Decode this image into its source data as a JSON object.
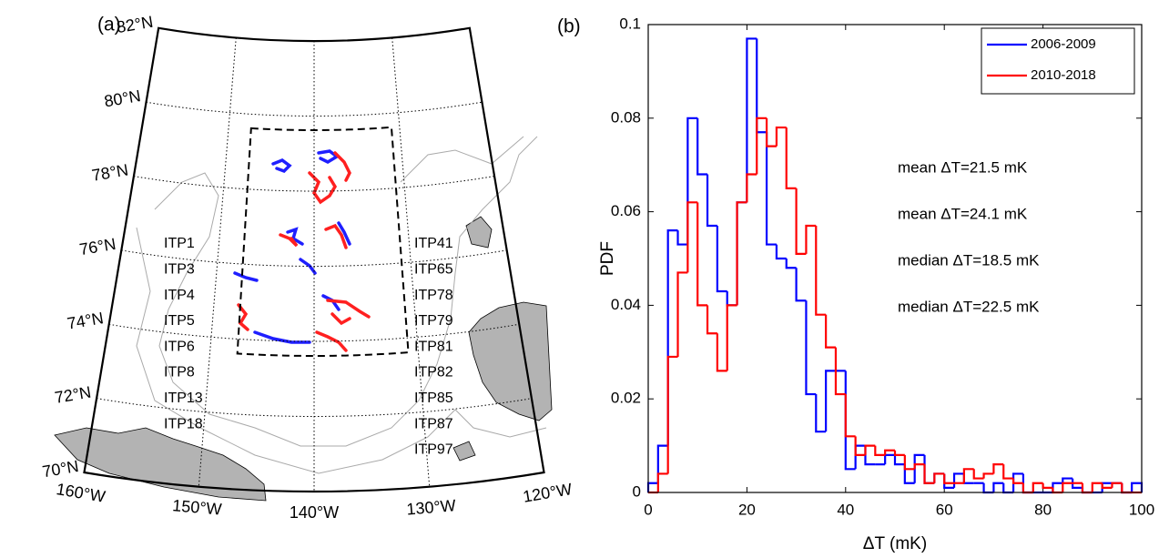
{
  "chart_data": [
    {
      "type": "map",
      "panel_label": "(a)",
      "lat_labels": [
        "82°N",
        "80°N",
        "78°N",
        "76°N",
        "74°N",
        "72°N",
        "70°N"
      ],
      "lon_labels": [
        "160°W",
        "150°W",
        "140°W",
        "130°W",
        "120°W"
      ],
      "label_groups": [
        {
          "color": "#2222ff",
          "labels": [
            "ITP1",
            "ITP3",
            "ITP4",
            "ITP5",
            "ITP6",
            "ITP8",
            "ITP13",
            "ITP18"
          ]
        },
        {
          "color": "#ff2222",
          "labels": [
            "ITP41",
            "ITP65",
            "ITP78",
            "ITP79",
            "ITP81",
            "ITP82",
            "ITP85",
            "ITP87",
            "ITP97"
          ]
        }
      ]
    },
    {
      "type": "histogram",
      "panel_label": "(b)",
      "x_label": "ΔT (mK)",
      "y_label": "PDF",
      "bins": [
        0,
        2,
        4,
        6,
        8,
        10,
        12,
        14,
        16,
        18,
        20,
        22,
        24,
        26,
        28,
        30,
        32,
        34,
        36,
        38,
        40,
        42,
        44,
        46,
        48,
        50,
        52,
        54,
        56,
        58,
        60,
        62,
        64,
        66,
        68,
        70,
        72,
        74,
        76,
        78,
        80,
        82,
        84,
        86,
        88,
        90,
        92,
        94,
        96,
        98,
        100
      ],
      "series": [
        {
          "name": "2006-2009",
          "color": "#0000ff",
          "values": [
            0.002,
            0.01,
            0.056,
            0.053,
            0.08,
            0.068,
            0.057,
            0.043,
            0.04,
            0.062,
            0.097,
            0.077,
            0.053,
            0.05,
            0.048,
            0.041,
            0.021,
            0.013,
            0.026,
            0.026,
            0.005,
            0.01,
            0.006,
            0.006,
            0.008,
            0.006,
            0.002,
            0.008,
            0.002,
            0.004,
            0.001,
            0.004,
            0.002,
            0.002,
            0,
            0.002,
            0,
            0.004,
            0,
            0,
            0,
            0.002,
            0.003,
            0.001,
            0,
            0,
            0.002,
            0.002,
            0,
            0.002
          ]
        },
        {
          "name": "2010-2018",
          "color": "#ff0000",
          "values": [
            0,
            0.004,
            0.029,
            0.047,
            0.062,
            0.04,
            0.034,
            0.026,
            0.04,
            0.062,
            0.068,
            0.08,
            0.074,
            0.078,
            0.065,
            0.051,
            0.057,
            0.038,
            0.031,
            0.021,
            0.012,
            0.008,
            0.01,
            0.008,
            0.009,
            0.008,
            0.005,
            0.006,
            0.002,
            0.004,
            0.002,
            0.002,
            0.005,
            0.003,
            0.004,
            0.006,
            0.003,
            0.002,
            0,
            0.002,
            0.001,
            0,
            0.002,
            0.002,
            0,
            0.002,
            0.001,
            0.002,
            0,
            0
          ]
        }
      ],
      "xlim": [
        0,
        100
      ],
      "xticks": [
        0,
        20,
        40,
        60,
        80,
        100
      ],
      "ylim": [
        0,
        0.1
      ],
      "yticks": [
        0,
        0.02,
        0.04,
        0.06,
        0.08,
        0.1
      ],
      "legend": "upper right",
      "annotations": [
        {
          "text": "mean ΔT=21.5 mK",
          "color": "#0000ff"
        },
        {
          "text": "mean ΔT=24.1 mK",
          "color": "#ff0000"
        },
        {
          "text": "median ΔT=18.5 mK",
          "color": "#0000ff"
        },
        {
          "text": "median ΔT=22.5 mK",
          "color": "#ff0000"
        }
      ]
    }
  ]
}
